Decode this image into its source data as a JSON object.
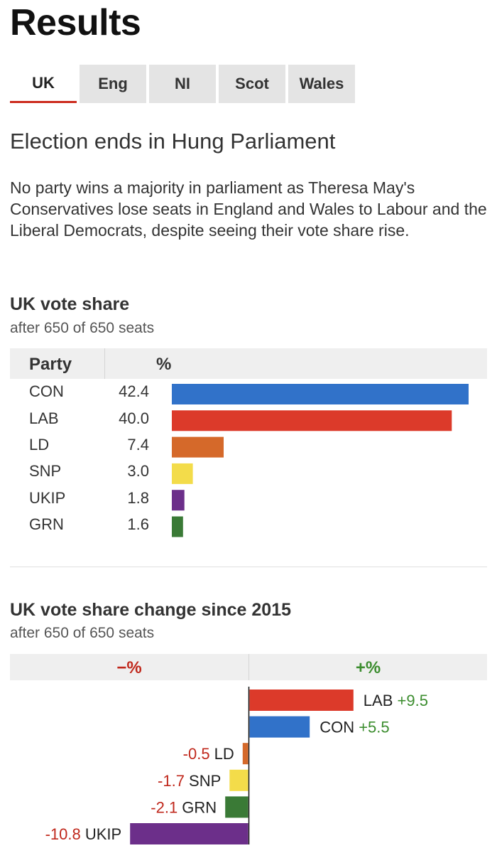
{
  "page": {
    "title": "Results",
    "tabs": [
      {
        "label": "UK",
        "active": true
      },
      {
        "label": "Eng",
        "active": false
      },
      {
        "label": "NI",
        "active": false
      },
      {
        "label": "Scot",
        "active": false
      },
      {
        "label": "Wales",
        "active": false
      }
    ],
    "headline": "Election ends in Hung Parliament",
    "summary": "No party wins a majority in parliament as Theresa May's Conservatives lose seats in England and Wales to Labour and the Liberal Democrats, despite seeing their vote share rise."
  },
  "colors": {
    "CON": "#3172c9",
    "LAB": "#dc3a2a",
    "LD": "#d5692a",
    "SNP": "#f3dc4a",
    "UKIP": "#6c2f8a",
    "GRN": "#3a7a36",
    "negative_text": "#c0281c",
    "positive_text": "#3c8d2f",
    "tab_active_border": "#cc2b1d"
  },
  "chart_data": [
    {
      "type": "bar",
      "orientation": "horizontal",
      "title": "UK vote share",
      "subtitle": "after 650 of 650 seats",
      "column_headers": [
        "Party",
        "%"
      ],
      "categories": [
        "CON",
        "LAB",
        "LD",
        "SNP",
        "UKIP",
        "GRN"
      ],
      "labels": [
        "42.4",
        "40.0",
        "7.4",
        "3.0",
        "1.8",
        "1.6"
      ],
      "values": [
        42.4,
        40.0,
        7.4,
        3.0,
        1.8,
        1.6
      ],
      "xlim": [
        0,
        42.4
      ],
      "grid": false,
      "legend": "none"
    },
    {
      "type": "bar",
      "orientation": "horizontal-diverging",
      "title": "UK vote share change since 2015",
      "subtitle": "after 650 of 650 seats",
      "column_headers": [
        "−%",
        "+%"
      ],
      "categories": [
        "LAB",
        "CON",
        "LD",
        "SNP",
        "GRN",
        "UKIP"
      ],
      "labels": [
        "+9.5",
        "+5.5",
        "-0.5",
        "-1.7",
        "-2.1",
        "-10.8"
      ],
      "values": [
        9.5,
        5.5,
        -0.5,
        -1.7,
        -2.1,
        -10.8
      ],
      "xlim": [
        -10.8,
        9.5
      ],
      "grid": false,
      "legend": "none"
    }
  ]
}
